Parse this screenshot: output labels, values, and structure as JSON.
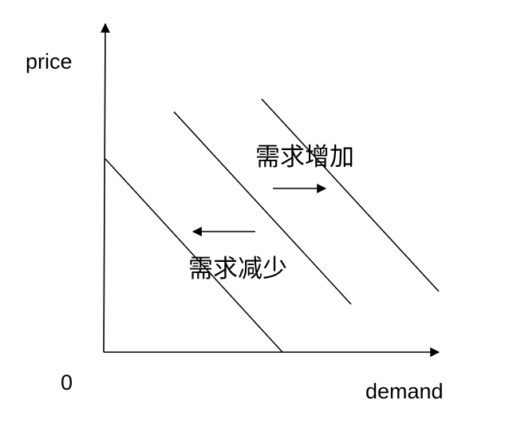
{
  "diagram": {
    "y_axis_label": "price",
    "x_axis_label": "demand",
    "origin_label": "0",
    "increase_label": "需求增加",
    "decrease_label": "需求减少",
    "line_color": "#000000"
  }
}
